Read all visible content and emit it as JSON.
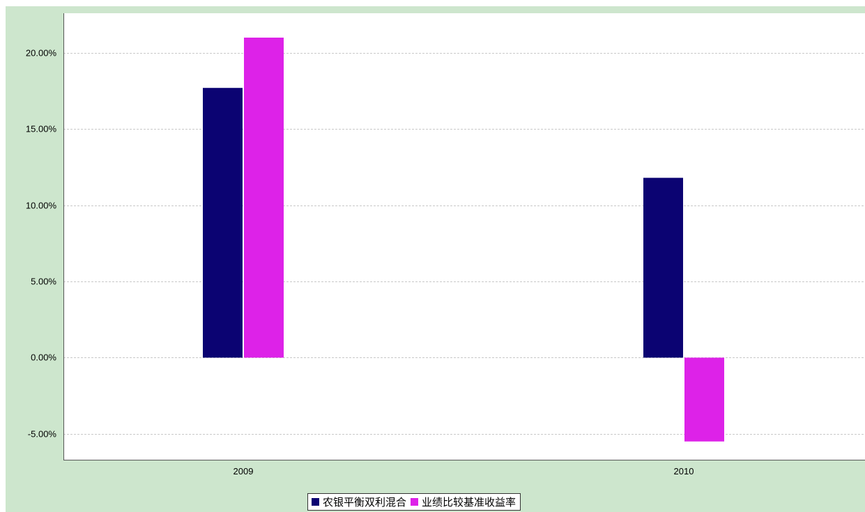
{
  "chart_data": {
    "type": "bar",
    "categories": [
      "2009",
      "2010"
    ],
    "series": [
      {
        "name": "农银平衡双利混合",
        "values": [
          17.7,
          11.8
        ],
        "color": "#0b0372"
      },
      {
        "name": "业绩比较基准收益率",
        "values": [
          21.0,
          -5.5
        ],
        "color": "#dd22e8"
      }
    ],
    "ylim": [
      -6.7,
      22.6
    ],
    "yticks": [
      -5,
      0,
      5,
      10,
      15,
      20
    ],
    "ytick_labels": [
      "-5.00%",
      "0.00%",
      "5.00%",
      "10.00%",
      "15.00%",
      "20.00%"
    ],
    "grid": true,
    "legend": "bottom-center",
    "title": "",
    "xlabel": "",
    "ylabel": ""
  },
  "colors": {
    "background": "#cde6cd",
    "plot_background": "#ffffff",
    "gridline": "#c8c8c8"
  }
}
